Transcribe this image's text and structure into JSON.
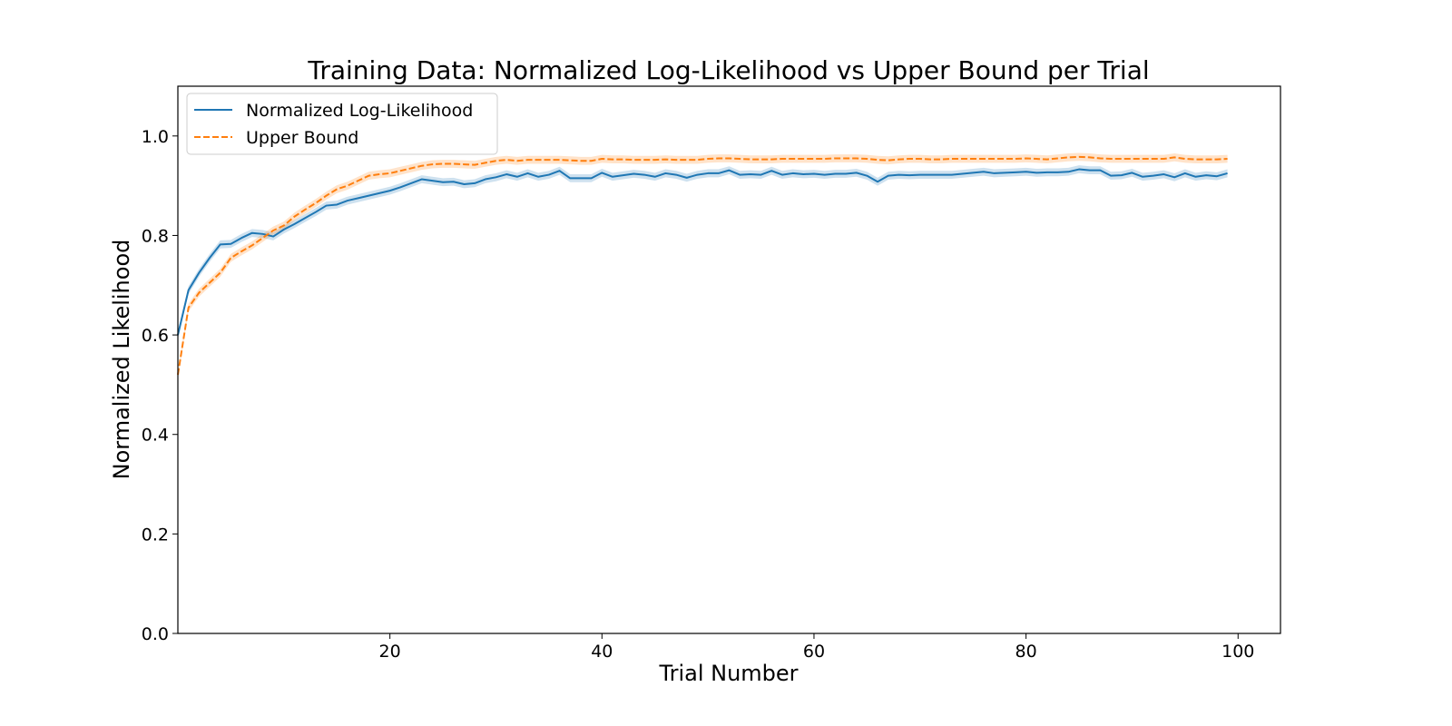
{
  "chart_data": {
    "type": "line",
    "title": "Training Data: Normalized Log-Likelihood vs Upper Bound per Trial",
    "xlabel": "Trial Number",
    "ylabel": "Normalized Likelihood",
    "xlim": [
      0,
      104
    ],
    "ylim": [
      0.0,
      1.1
    ],
    "xticks": [
      20,
      40,
      60,
      80,
      100
    ],
    "yticks": [
      0.0,
      0.2,
      0.4,
      0.6,
      0.8,
      1.0
    ],
    "grid": false,
    "legend_position": "upper-left",
    "x": [
      0,
      1,
      2,
      3,
      4,
      5,
      6,
      7,
      8,
      9,
      10,
      11,
      12,
      13,
      14,
      15,
      16,
      17,
      18,
      19,
      20,
      21,
      22,
      23,
      24,
      25,
      26,
      27,
      28,
      29,
      30,
      31,
      32,
      33,
      34,
      35,
      36,
      37,
      38,
      39,
      40,
      41,
      42,
      43,
      44,
      45,
      46,
      47,
      48,
      49,
      50,
      51,
      52,
      53,
      54,
      55,
      56,
      57,
      58,
      59,
      60,
      61,
      62,
      63,
      64,
      65,
      66,
      67,
      68,
      69,
      70,
      71,
      72,
      73,
      74,
      75,
      76,
      77,
      78,
      79,
      80,
      81,
      82,
      83,
      84,
      85,
      86,
      87,
      88,
      89,
      90,
      91,
      92,
      93,
      94,
      95,
      96,
      97,
      98,
      99
    ],
    "series": [
      {
        "name": "Normalized Log-Likelihood",
        "color": "#1f77b4",
        "style": "solid",
        "band_halfwidth": 0.008,
        "values": [
          0.6,
          0.69,
          0.725,
          0.755,
          0.782,
          0.783,
          0.795,
          0.805,
          0.803,
          0.798,
          0.812,
          0.823,
          0.835,
          0.847,
          0.86,
          0.862,
          0.87,
          0.875,
          0.88,
          0.885,
          0.89,
          0.897,
          0.905,
          0.913,
          0.91,
          0.907,
          0.908,
          0.903,
          0.905,
          0.913,
          0.917,
          0.923,
          0.918,
          0.925,
          0.918,
          0.922,
          0.93,
          0.915,
          0.915,
          0.915,
          0.926,
          0.918,
          0.921,
          0.924,
          0.922,
          0.918,
          0.925,
          0.922,
          0.916,
          0.922,
          0.925,
          0.925,
          0.931,
          0.922,
          0.923,
          0.922,
          0.93,
          0.922,
          0.925,
          0.923,
          0.924,
          0.922,
          0.924,
          0.924,
          0.926,
          0.92,
          0.908,
          0.92,
          0.922,
          0.921,
          0.922,
          0.922,
          0.922,
          0.922,
          0.924,
          0.926,
          0.928,
          0.925,
          0.926,
          0.927,
          0.928,
          0.926,
          0.927,
          0.927,
          0.928,
          0.933,
          0.931,
          0.931,
          0.92,
          0.921,
          0.926,
          0.918,
          0.92,
          0.923,
          0.917,
          0.925,
          0.918,
          0.921,
          0.919,
          0.925
        ]
      },
      {
        "name": "Upper Bound",
        "color": "#ff7f0e",
        "style": "dashed",
        "band_halfwidth": 0.008,
        "values": [
          0.52,
          0.655,
          0.685,
          0.705,
          0.725,
          0.755,
          0.768,
          0.78,
          0.795,
          0.81,
          0.82,
          0.838,
          0.852,
          0.865,
          0.88,
          0.893,
          0.9,
          0.91,
          0.92,
          0.923,
          0.925,
          0.93,
          0.935,
          0.94,
          0.943,
          0.944,
          0.944,
          0.943,
          0.942,
          0.946,
          0.95,
          0.952,
          0.95,
          0.952,
          0.952,
          0.952,
          0.952,
          0.951,
          0.95,
          0.95,
          0.954,
          0.953,
          0.953,
          0.952,
          0.952,
          0.952,
          0.953,
          0.952,
          0.952,
          0.952,
          0.954,
          0.955,
          0.955,
          0.954,
          0.953,
          0.953,
          0.953,
          0.954,
          0.954,
          0.954,
          0.954,
          0.954,
          0.955,
          0.955,
          0.955,
          0.954,
          0.952,
          0.951,
          0.953,
          0.954,
          0.954,
          0.953,
          0.953,
          0.954,
          0.954,
          0.954,
          0.954,
          0.954,
          0.954,
          0.954,
          0.955,
          0.954,
          0.953,
          0.955,
          0.957,
          0.958,
          0.957,
          0.955,
          0.954,
          0.954,
          0.954,
          0.954,
          0.954,
          0.954,
          0.957,
          0.954,
          0.953,
          0.953,
          0.953,
          0.954
        ]
      }
    ]
  }
}
